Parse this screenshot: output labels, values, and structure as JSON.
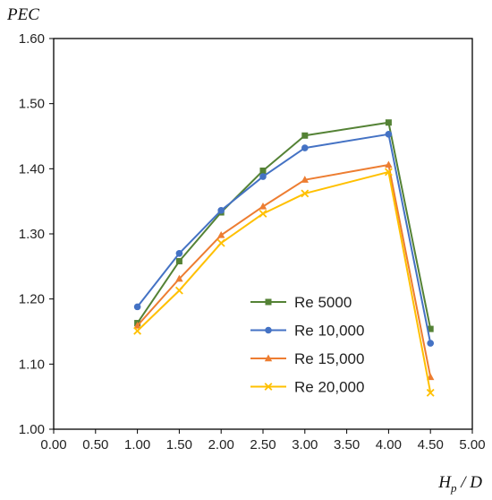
{
  "chart_data": {
    "type": "line",
    "title": "",
    "ylabel": "PEC",
    "xlabel_main": "H",
    "xlabel_sub": "p",
    "xlabel_tail": " / D",
    "xlim": [
      0,
      5
    ],
    "ylim": [
      1.0,
      1.6
    ],
    "xticks": [
      "0.00",
      "0.50",
      "1.00",
      "1.50",
      "2.00",
      "2.50",
      "3.00",
      "3.50",
      "4.00",
      "4.50",
      "5.00"
    ],
    "yticks": [
      "1.00",
      "1.10",
      "1.20",
      "1.30",
      "1.40",
      "1.50",
      "1.60"
    ],
    "grid": false,
    "legend_position": "lower-center",
    "x": [
      1.0,
      1.5,
      2.0,
      2.5,
      3.0,
      4.0,
      4.5
    ],
    "series": [
      {
        "name": "Re 5000",
        "color": "#548235",
        "marker": "square",
        "values": [
          1.163,
          1.258,
          1.333,
          1.397,
          1.451,
          1.471,
          1.154
        ]
      },
      {
        "name": "Re 10,000",
        "color": "#4472C4",
        "marker": "circle",
        "values": [
          1.188,
          1.27,
          1.336,
          1.388,
          1.432,
          1.453,
          1.132
        ]
      },
      {
        "name": "Re 15,000",
        "color": "#ED7D31",
        "marker": "triangle",
        "values": [
          1.159,
          1.231,
          1.298,
          1.342,
          1.383,
          1.406,
          1.08
        ]
      },
      {
        "name": "Re 20,000",
        "color": "#FFC000",
        "marker": "x",
        "values": [
          1.151,
          1.213,
          1.286,
          1.331,
          1.362,
          1.395,
          1.056
        ]
      }
    ]
  }
}
